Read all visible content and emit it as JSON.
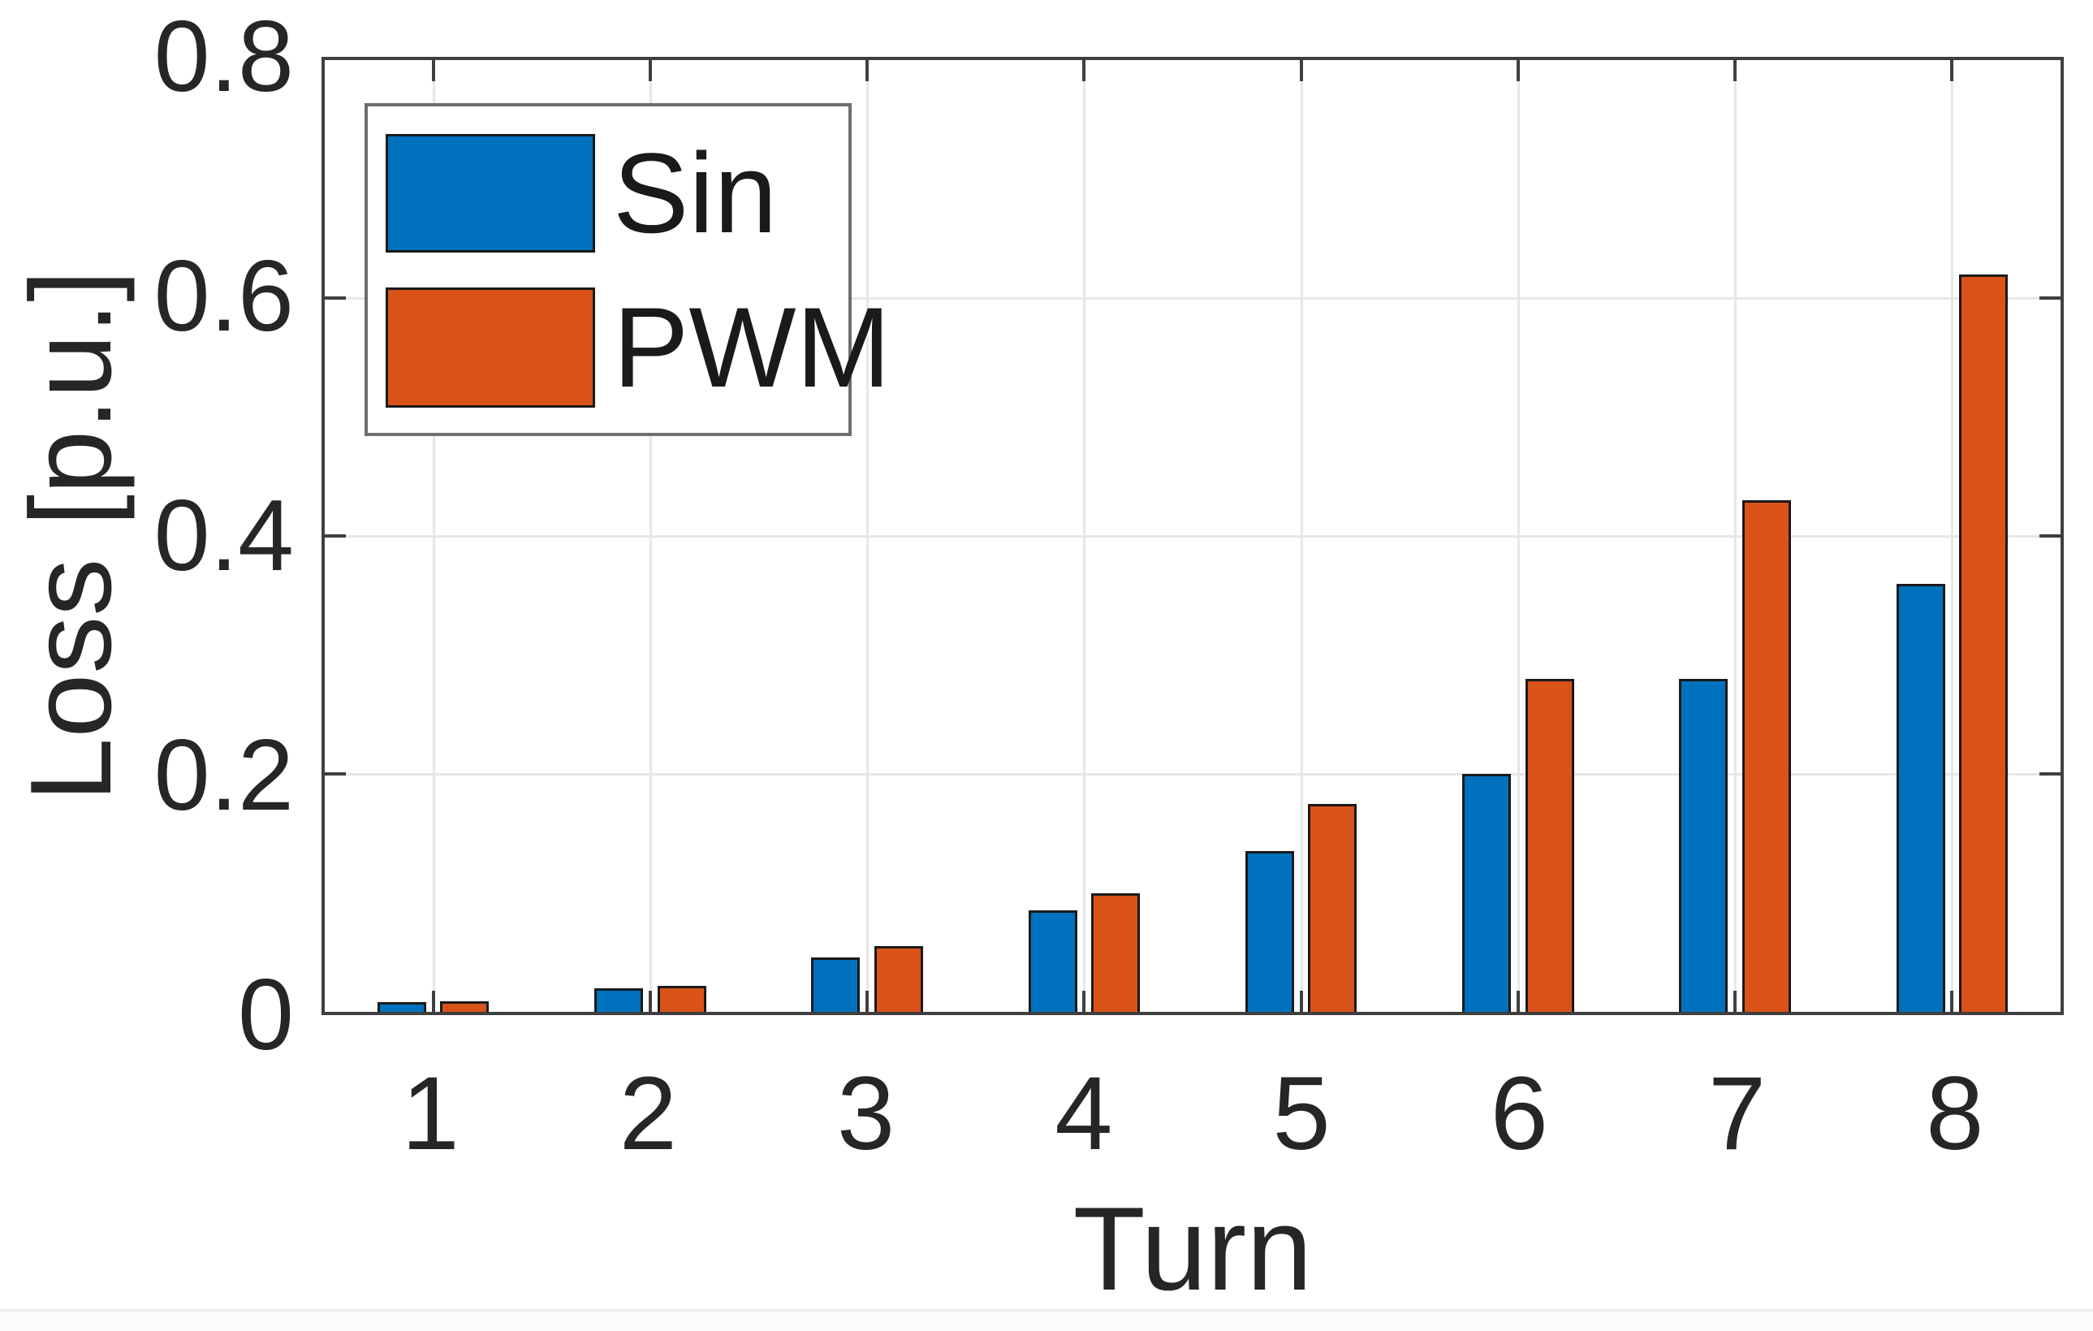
{
  "figure": {
    "background": "#ffffff",
    "axis_color": "#3f3f3f",
    "grid_color": "#e7e7e7",
    "text_color": "#262626",
    "bar_edge_color": "#1a1a1a"
  },
  "chart_data": {
    "type": "bar",
    "title": "",
    "xlabel": "Turn",
    "ylabel": "Loss [p.u.]",
    "categories": [
      "1",
      "2",
      "3",
      "4",
      "5",
      "6",
      "7",
      "8"
    ],
    "series": [
      {
        "name": "Sin",
        "color": "#0072BD",
        "values": [
          0.008,
          0.02,
          0.046,
          0.085,
          0.135,
          0.2,
          0.28,
          0.36
        ]
      },
      {
        "name": "PWM",
        "color": "#D95319",
        "values": [
          0.009,
          0.022,
          0.055,
          0.1,
          0.175,
          0.28,
          0.43,
          0.62
        ]
      }
    ],
    "ylim": [
      0,
      0.8
    ],
    "ytick_values": [
      0,
      0.2,
      0.4,
      0.6,
      0.8
    ],
    "ytick_labels": [
      "0",
      "0.2",
      "0.4",
      "0.6",
      "0.8"
    ],
    "grid": true,
    "legend_position": "top-left"
  }
}
